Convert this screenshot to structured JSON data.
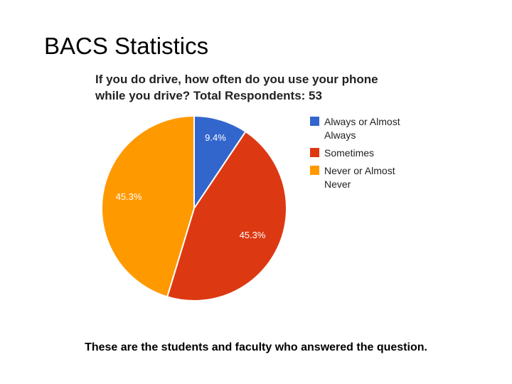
{
  "slide": {
    "title": "BACS Statistics",
    "caption": "These are the students and faculty who answered the question."
  },
  "chart_data": {
    "type": "pie",
    "title_lines": [
      "If you do drive, how often do you use your phone",
      "while you drive? Total Respondents: 53"
    ],
    "categories": [
      "Always or Almost Always",
      "Sometimes",
      "Never or Almost Never"
    ],
    "values": [
      9.4,
      45.3,
      45.3
    ],
    "data_labels": [
      "9.4%",
      "45.3%",
      "45.3%"
    ],
    "colors": [
      "#3366cc",
      "#dc3912",
      "#ff9900"
    ],
    "legend_position": "right",
    "legend": [
      {
        "lines": [
          "Always or Almost",
          "Always"
        ]
      },
      {
        "lines": [
          "Sometimes"
        ]
      },
      {
        "lines": [
          "Never or Almost",
          "Never"
        ]
      }
    ]
  }
}
